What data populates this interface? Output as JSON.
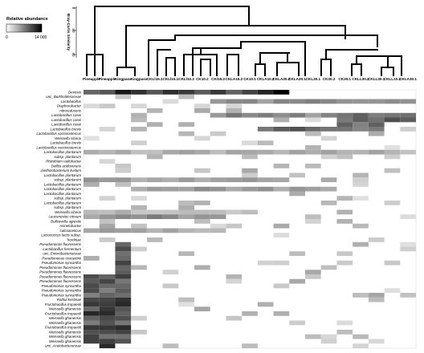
{
  "legend": {
    "title": "Relative abundance",
    "min_label": "0",
    "max_label": "14 000"
  },
  "dendrogram": {
    "axis_title": "Bray-Curtis Similarity",
    "ticks": [
      "0",
      "50",
      "90"
    ]
  },
  "samples": [
    "Pineapple",
    "Pineapple",
    "Kingpass",
    "Kingpass",
    "CKLl15.1",
    "CKLl15.1",
    "CKLl10.2",
    "CK10.2",
    "CKl15.2",
    "CKLA15.2",
    "CK10.1",
    "CKLA10.2",
    "CKLA30.2",
    "CKLA20.1",
    "CKL30.1",
    "CK30.2",
    "CK30.1",
    "CKLL30.2",
    "CKLL30.1",
    "CKLL10.2",
    "CKLA30.1"
  ],
  "taxa": [
    "Devosia",
    "unc_Burkholderiaceae",
    "Lactobacillus",
    "Diaphorobacter",
    "nitroreducens",
    "Lactobacillus casei",
    "Lactobacillus casei",
    "Lactobacillus casei",
    "Lactobacillus brevis",
    "Lactobacillus vaccinostercus",
    "Weissella cibaria",
    "Lactobacillus brevis",
    "Lactobacillus vaccinostercus",
    "Lactobacillus plantarum",
    "subsp. plantarum",
    "Rhizobium radiobacter",
    "Delftia acidovorans",
    "Janthinobacterium lividum",
    "Lactobacillus plantarum",
    "subsp. plantarum",
    "Lactobacillus plantarum",
    "Lactobacillus plantarum",
    "Lactobacillus plantarum",
    "subsp. plantarum",
    "Lactobacillus plantarum",
    "subsp. plantarum",
    "Weissella cibaria",
    "Leuconostoc citreum",
    "Bulleavella agrestis",
    "Acinetobacter",
    "calcoaceticus",
    "Lactococcus lactis subsp.",
    "hordniae",
    "Pseudomonas fluorescens",
    "Lactobacillus fermentum",
    "unc_Enterobacteriaceae",
    "Pseudomonas costantinii",
    "Pseudomonas synxantha",
    "Pseudomonas fluorescens",
    "Pseudomonas fluorescens",
    "Pseudomonas fluorescens",
    "Pseudomonas fluorescens",
    "Pseudomonas synxantha",
    "Pseudomonas synxantha",
    "Pseudomonas synxantha",
    "Rothia kristinae",
    "Fructobacillus tropaeoli",
    "Weissella ghanensis",
    "Fructobacillus tropaeoli",
    "Weissella ghanensis",
    "Weissella ghanensis",
    "Fructobacillus tropaeoli",
    "Weissella ghanensis",
    "Weissella ghanensis",
    "Weissella ghanensis",
    "unc_Acetobacteraceae"
  ],
  "colors": {
    "background": "#ffffff",
    "cell_high": "#000000",
    "cell_low": "#f4f4f4",
    "line": "#000000"
  }
}
